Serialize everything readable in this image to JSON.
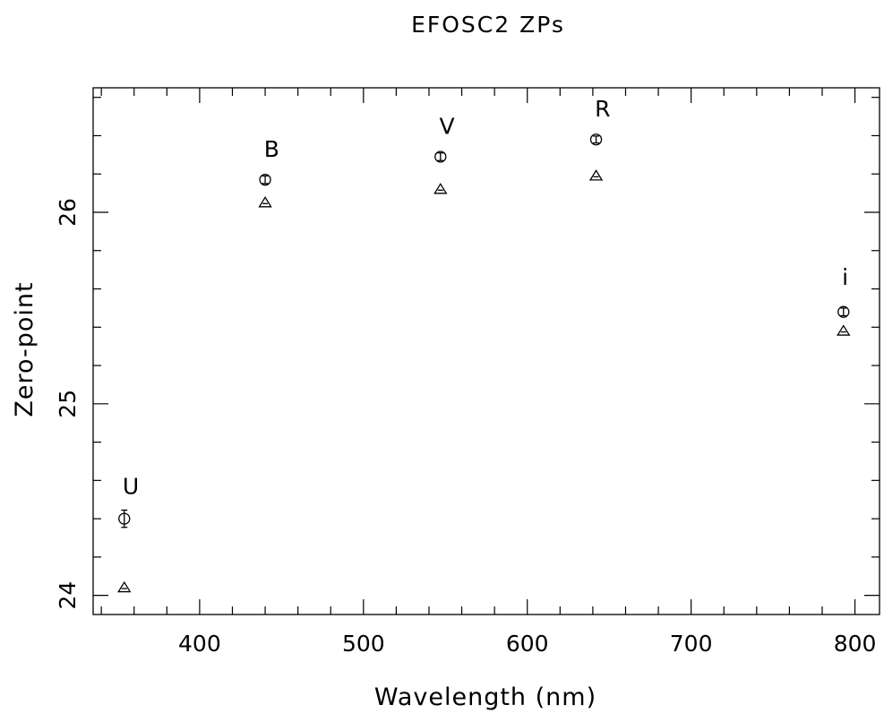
{
  "chart_data": {
    "type": "scatter",
    "title": "EFOSC2 ZPs",
    "xlabel": "Wavelength (nm)",
    "ylabel": "Zero-point",
    "xlim": [
      335,
      815
    ],
    "ylim": [
      23.9,
      26.65
    ],
    "xticks": [
      400,
      500,
      600,
      700,
      800
    ],
    "yticks": [
      24,
      25,
      26
    ],
    "x_minor_step": 20,
    "y_minor_step": 0.2,
    "grid": false,
    "legend": "none",
    "marker_color": "#000000",
    "series": [
      {
        "marker": "circle",
        "points": [
          {
            "x": 354,
            "y": 24.4,
            "err": 0.045
          },
          {
            "x": 440,
            "y": 26.17,
            "err": 0.02
          },
          {
            "x": 547,
            "y": 26.29,
            "err": 0.02
          },
          {
            "x": 642,
            "y": 26.38,
            "err": 0.018
          },
          {
            "x": 793,
            "y": 25.48,
            "err": 0.02
          }
        ]
      },
      {
        "marker": "triangle",
        "points": [
          {
            "x": 354,
            "y": 24.04
          },
          {
            "x": 440,
            "y": 26.05
          },
          {
            "x": 547,
            "y": 26.12
          },
          {
            "x": 642,
            "y": 26.19
          },
          {
            "x": 793,
            "y": 25.38
          }
        ]
      }
    ],
    "point_labels": [
      {
        "text": "U",
        "x": 358,
        "y": 24.53
      },
      {
        "text": "B",
        "x": 444,
        "y": 26.29
      },
      {
        "text": "V",
        "x": 551,
        "y": 26.41
      },
      {
        "text": "R",
        "x": 646,
        "y": 26.5
      },
      {
        "text": "i",
        "x": 794,
        "y": 25.62
      }
    ]
  }
}
